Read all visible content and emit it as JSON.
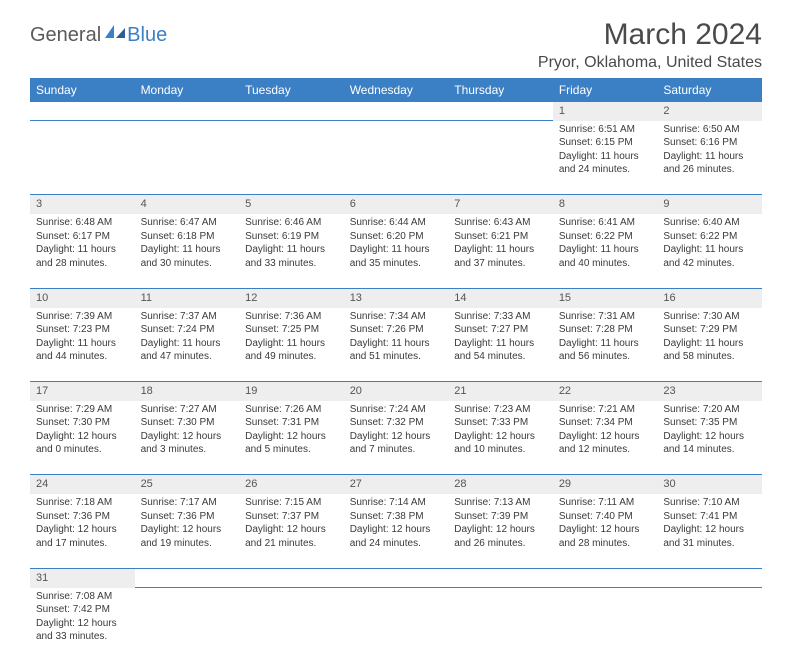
{
  "logo": {
    "part1": "General",
    "part2": "Blue"
  },
  "title": "March 2024",
  "location": "Pryor, Oklahoma, United States",
  "colors": {
    "header_bg": "#3b7fc4",
    "header_text": "#ffffff",
    "daynum_bg": "#eeeeee",
    "row_border": "#3b7fc4",
    "body_text": "#3a3a3a",
    "title_text": "#4a4a4a"
  },
  "weekdays": [
    "Sunday",
    "Monday",
    "Tuesday",
    "Wednesday",
    "Thursday",
    "Friday",
    "Saturday"
  ],
  "weeks": [
    [
      null,
      null,
      null,
      null,
      null,
      {
        "n": "1",
        "sr": "6:51 AM",
        "ss": "6:15 PM",
        "dl": "11 hours and 24 minutes."
      },
      {
        "n": "2",
        "sr": "6:50 AM",
        "ss": "6:16 PM",
        "dl": "11 hours and 26 minutes."
      }
    ],
    [
      {
        "n": "3",
        "sr": "6:48 AM",
        "ss": "6:17 PM",
        "dl": "11 hours and 28 minutes."
      },
      {
        "n": "4",
        "sr": "6:47 AM",
        "ss": "6:18 PM",
        "dl": "11 hours and 30 minutes."
      },
      {
        "n": "5",
        "sr": "6:46 AM",
        "ss": "6:19 PM",
        "dl": "11 hours and 33 minutes."
      },
      {
        "n": "6",
        "sr": "6:44 AM",
        "ss": "6:20 PM",
        "dl": "11 hours and 35 minutes."
      },
      {
        "n": "7",
        "sr": "6:43 AM",
        "ss": "6:21 PM",
        "dl": "11 hours and 37 minutes."
      },
      {
        "n": "8",
        "sr": "6:41 AM",
        "ss": "6:22 PM",
        "dl": "11 hours and 40 minutes."
      },
      {
        "n": "9",
        "sr": "6:40 AM",
        "ss": "6:22 PM",
        "dl": "11 hours and 42 minutes."
      }
    ],
    [
      {
        "n": "10",
        "sr": "7:39 AM",
        "ss": "7:23 PM",
        "dl": "11 hours and 44 minutes."
      },
      {
        "n": "11",
        "sr": "7:37 AM",
        "ss": "7:24 PM",
        "dl": "11 hours and 47 minutes."
      },
      {
        "n": "12",
        "sr": "7:36 AM",
        "ss": "7:25 PM",
        "dl": "11 hours and 49 minutes."
      },
      {
        "n": "13",
        "sr": "7:34 AM",
        "ss": "7:26 PM",
        "dl": "11 hours and 51 minutes."
      },
      {
        "n": "14",
        "sr": "7:33 AM",
        "ss": "7:27 PM",
        "dl": "11 hours and 54 minutes."
      },
      {
        "n": "15",
        "sr": "7:31 AM",
        "ss": "7:28 PM",
        "dl": "11 hours and 56 minutes."
      },
      {
        "n": "16",
        "sr": "7:30 AM",
        "ss": "7:29 PM",
        "dl": "11 hours and 58 minutes."
      }
    ],
    [
      {
        "n": "17",
        "sr": "7:29 AM",
        "ss": "7:30 PM",
        "dl": "12 hours and 0 minutes."
      },
      {
        "n": "18",
        "sr": "7:27 AM",
        "ss": "7:30 PM",
        "dl": "12 hours and 3 minutes."
      },
      {
        "n": "19",
        "sr": "7:26 AM",
        "ss": "7:31 PM",
        "dl": "12 hours and 5 minutes."
      },
      {
        "n": "20",
        "sr": "7:24 AM",
        "ss": "7:32 PM",
        "dl": "12 hours and 7 minutes."
      },
      {
        "n": "21",
        "sr": "7:23 AM",
        "ss": "7:33 PM",
        "dl": "12 hours and 10 minutes."
      },
      {
        "n": "22",
        "sr": "7:21 AM",
        "ss": "7:34 PM",
        "dl": "12 hours and 12 minutes."
      },
      {
        "n": "23",
        "sr": "7:20 AM",
        "ss": "7:35 PM",
        "dl": "12 hours and 14 minutes."
      }
    ],
    [
      {
        "n": "24",
        "sr": "7:18 AM",
        "ss": "7:36 PM",
        "dl": "12 hours and 17 minutes."
      },
      {
        "n": "25",
        "sr": "7:17 AM",
        "ss": "7:36 PM",
        "dl": "12 hours and 19 minutes."
      },
      {
        "n": "26",
        "sr": "7:15 AM",
        "ss": "7:37 PM",
        "dl": "12 hours and 21 minutes."
      },
      {
        "n": "27",
        "sr": "7:14 AM",
        "ss": "7:38 PM",
        "dl": "12 hours and 24 minutes."
      },
      {
        "n": "28",
        "sr": "7:13 AM",
        "ss": "7:39 PM",
        "dl": "12 hours and 26 minutes."
      },
      {
        "n": "29",
        "sr": "7:11 AM",
        "ss": "7:40 PM",
        "dl": "12 hours and 28 minutes."
      },
      {
        "n": "30",
        "sr": "7:10 AM",
        "ss": "7:41 PM",
        "dl": "12 hours and 31 minutes."
      }
    ],
    [
      {
        "n": "31",
        "sr": "7:08 AM",
        "ss": "7:42 PM",
        "dl": "12 hours and 33 minutes."
      },
      null,
      null,
      null,
      null,
      null,
      null
    ]
  ],
  "labels": {
    "sunrise": "Sunrise:",
    "sunset": "Sunset:",
    "daylight": "Daylight:"
  }
}
